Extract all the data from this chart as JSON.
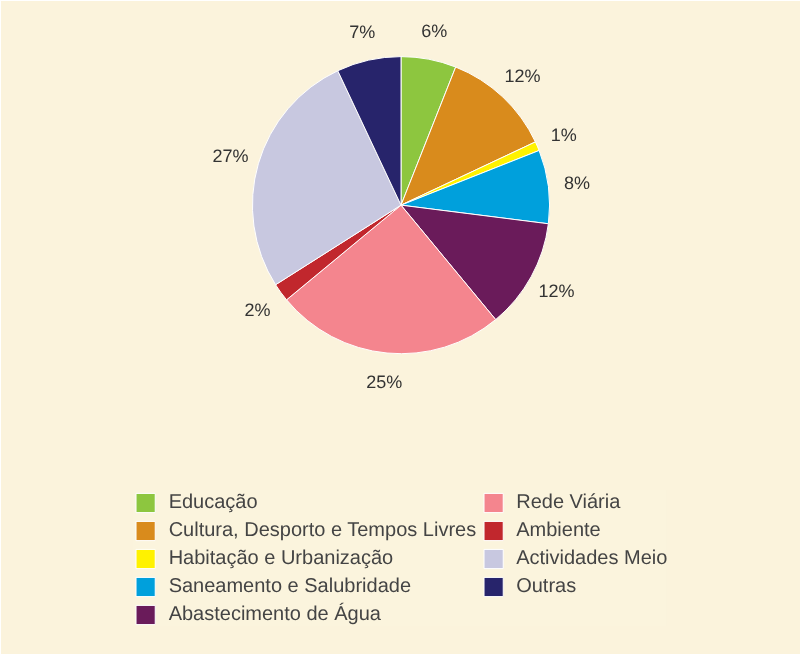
{
  "chart_data": {
    "type": "pie",
    "categories": [
      "Educação",
      "Cultura, Desporto e Tempos Livres",
      "Habitação e Urbanização",
      "Saneamento e Salubridade",
      "Abastecimento de Água",
      "Rede Viária",
      "Ambiente",
      "Actividades Meio",
      "Outras"
    ],
    "values": [
      6,
      12,
      1,
      8,
      12,
      25,
      2,
      27,
      7
    ],
    "colors": [
      "#8dc63f",
      "#d98b1c",
      "#fff200",
      "#00a0dc",
      "#6a1b5a",
      "#f4858e",
      "#c1272d",
      "#c8c8e0",
      "#27246b"
    ],
    "value_labels": [
      "6%",
      "12%",
      "1%",
      "8%",
      "12%",
      "25%",
      "2%",
      "27%",
      "7%"
    ],
    "legend": "bottom"
  }
}
